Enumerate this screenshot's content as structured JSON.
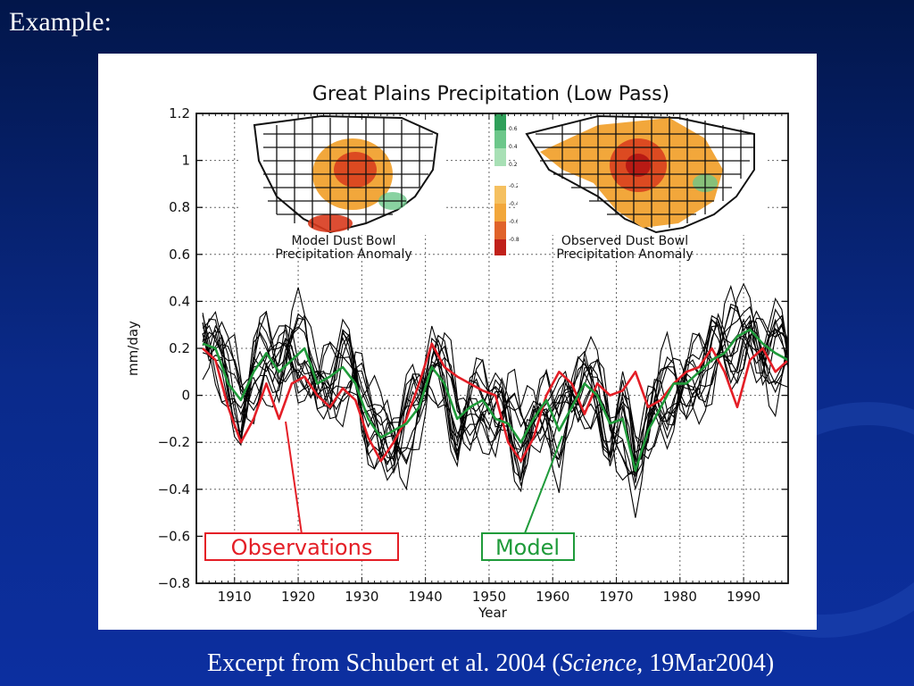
{
  "slide": {
    "title": "Example:",
    "caption_prefix": "Excerpt from Schubert et al. 2004 (",
    "caption_italic": "Science,",
    "caption_suffix": " 19Mar2004)"
  },
  "insets": {
    "left_label_line1": "Model Dust Bowl",
    "left_label_line2": "Precipitation Anomaly",
    "right_label_line1": "Observed Dust Bowl",
    "right_label_line2": "Precipitation Anomaly",
    "colorbar_tick_labels": [
      "0.6",
      "0.4",
      "0.2",
      "-0.2",
      "-0.4",
      "-0.6",
      "-0.8"
    ]
  },
  "annotations": {
    "observations": "Observations",
    "model": "Model"
  },
  "colors": {
    "observations": "#e41e26",
    "model": "#1f9b3a",
    "ensemble": "#000000",
    "inset_orange": "#f2a73b",
    "inset_red": "#d83a1d",
    "inset_green": "#6cc78a"
  },
  "chart_data": {
    "type": "line",
    "title": "Great Plains Precipitation (Low Pass)",
    "xlabel": "Year",
    "ylabel": "mm/day",
    "xlim": [
      1904,
      1997
    ],
    "ylim": [
      -0.8,
      1.2
    ],
    "x_ticks": [
      1910,
      1920,
      1930,
      1940,
      1950,
      1960,
      1970,
      1980,
      1990
    ],
    "y_ticks": [
      1.2,
      1,
      0.8,
      0.6,
      0.4,
      0.2,
      0,
      -0.2,
      -0.4,
      -0.6,
      -0.8
    ],
    "y_tick_labels": [
      "1.2",
      "1",
      "0.8",
      "0.6",
      "0.4",
      "0.2",
      "0",
      "−0.2",
      "−0.4",
      "−0.6",
      "−0.8"
    ],
    "grid": true,
    "series": [
      {
        "name": "Observations",
        "x": [
          1905,
          1907,
          1909,
          1911,
          1913,
          1915,
          1917,
          1919,
          1921,
          1923,
          1925,
          1927,
          1929,
          1931,
          1933,
          1935,
          1937,
          1939,
          1941,
          1943,
          1945,
          1947,
          1949,
          1951,
          1953,
          1955,
          1957,
          1959,
          1961,
          1963,
          1965,
          1967,
          1969,
          1971,
          1973,
          1975,
          1977,
          1979,
          1981,
          1983,
          1985,
          1987,
          1989,
          1991,
          1993,
          1995,
          1997
        ],
        "values": [
          0.2,
          0.15,
          -0.05,
          -0.2,
          -0.1,
          0.05,
          -0.1,
          0.05,
          0.08,
          0.0,
          -0.05,
          0.03,
          -0.02,
          -0.18,
          -0.28,
          -0.2,
          -0.1,
          0.05,
          0.22,
          0.12,
          0.08,
          0.05,
          0.02,
          0.0,
          -0.2,
          -0.28,
          -0.18,
          0.0,
          0.1,
          0.05,
          -0.08,
          0.05,
          0.0,
          0.02,
          0.1,
          -0.05,
          -0.02,
          0.05,
          0.1,
          0.12,
          0.2,
          0.1,
          -0.05,
          0.15,
          0.2,
          0.1,
          0.15
        ]
      },
      {
        "name": "Model",
        "x": [
          1905,
          1907,
          1909,
          1911,
          1913,
          1915,
          1917,
          1919,
          1921,
          1923,
          1925,
          1927,
          1929,
          1931,
          1933,
          1935,
          1937,
          1939,
          1941,
          1943,
          1945,
          1947,
          1949,
          1951,
          1953,
          1955,
          1957,
          1959,
          1961,
          1963,
          1965,
          1967,
          1969,
          1971,
          1973,
          1975,
          1977,
          1979,
          1981,
          1983,
          1985,
          1987,
          1989,
          1991,
          1993,
          1995,
          1997
        ],
        "values": [
          0.22,
          0.2,
          0.05,
          -0.02,
          0.1,
          0.18,
          0.1,
          0.15,
          0.2,
          0.05,
          0.08,
          0.12,
          0.05,
          -0.1,
          -0.18,
          -0.15,
          -0.12,
          -0.05,
          0.12,
          0.05,
          -0.1,
          -0.05,
          -0.02,
          -0.1,
          -0.12,
          -0.2,
          -0.1,
          -0.02,
          -0.15,
          -0.05,
          0.05,
          0.0,
          -0.12,
          -0.1,
          -0.32,
          -0.15,
          -0.05,
          0.05,
          0.05,
          0.1,
          0.15,
          0.18,
          0.25,
          0.28,
          0.22,
          0.18,
          0.15
        ]
      }
    ]
  }
}
